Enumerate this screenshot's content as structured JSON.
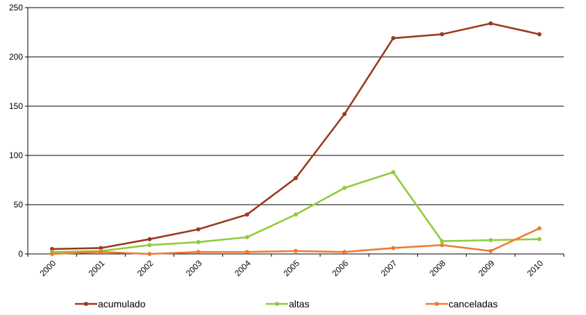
{
  "chart_data": {
    "type": "line",
    "title": "",
    "xlabel": "",
    "ylabel": "",
    "categories": [
      "2000",
      "2001",
      "2002",
      "2003",
      "2004",
      "2005",
      "2006",
      "2007",
      "2008",
      "2009",
      "2010"
    ],
    "ylim": [
      0,
      250
    ],
    "yticks": [
      0,
      50,
      100,
      150,
      200,
      250
    ],
    "grid": true,
    "legend_position": "bottom",
    "series": [
      {
        "name": "acumulado",
        "color": "#9b3a1e",
        "values": [
          5,
          6,
          15,
          25,
          40,
          77,
          142,
          219,
          223,
          234,
          223
        ]
      },
      {
        "name": "altas",
        "color": "#8fcc3c",
        "values": [
          2,
          3,
          9,
          12,
          17,
          40,
          67,
          83,
          13,
          14,
          15
        ]
      },
      {
        "name": "canceladas",
        "color": "#f07a32",
        "values": [
          0,
          2,
          0,
          2,
          2,
          3,
          2,
          6,
          9,
          3,
          26
        ]
      }
    ]
  }
}
